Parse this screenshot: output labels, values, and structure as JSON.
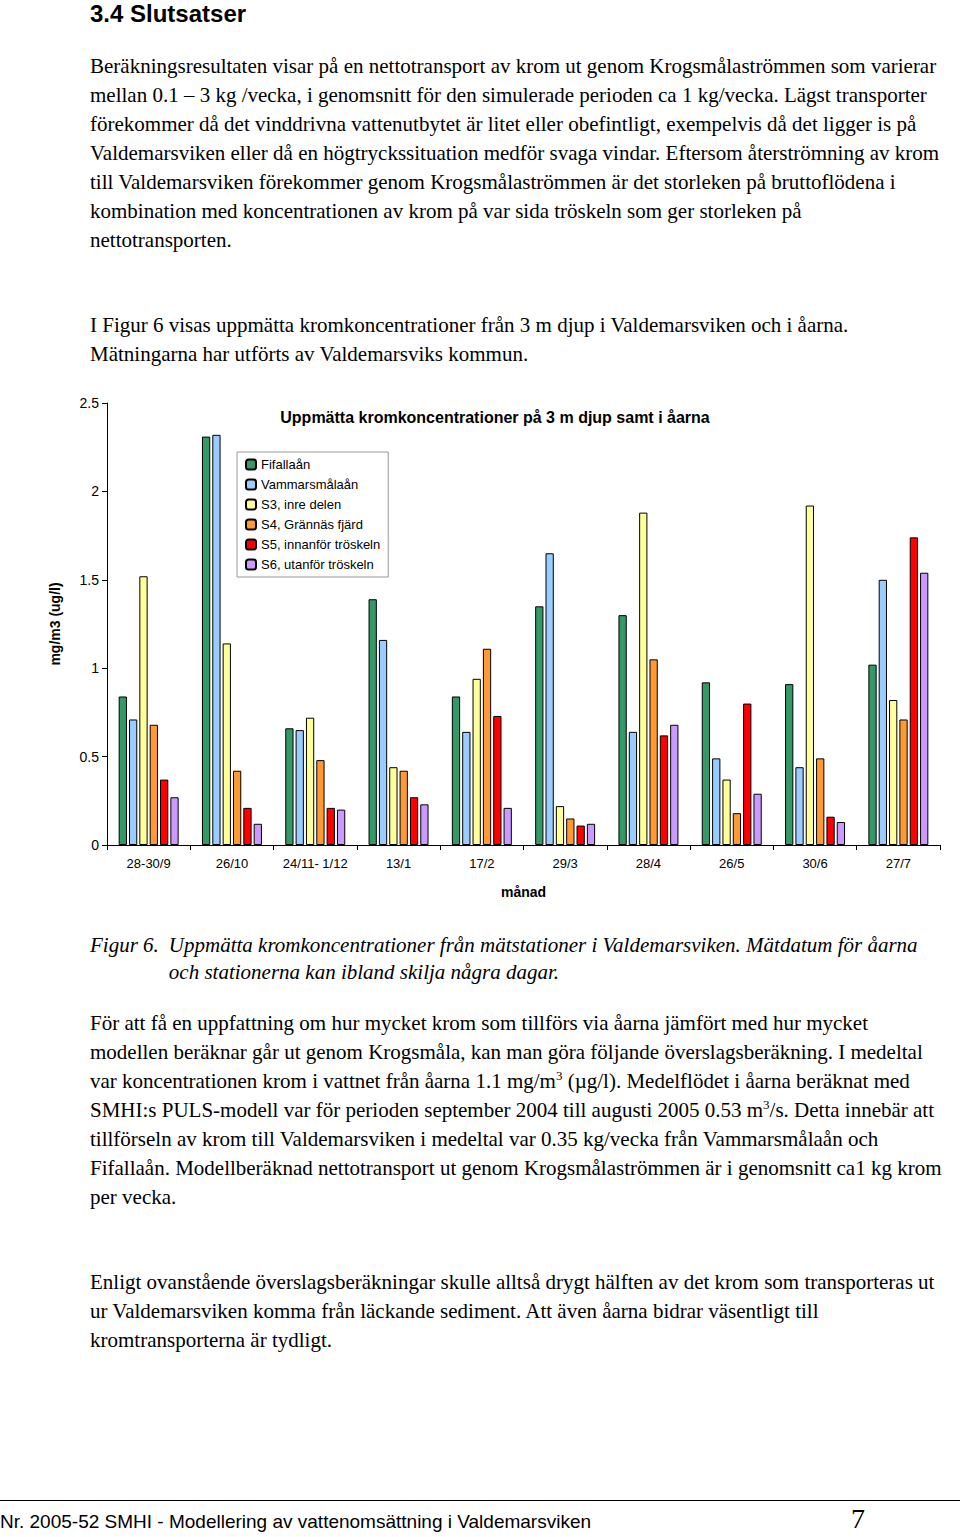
{
  "heading": "3.4 Slutsatser",
  "paragraphs_before": [
    [
      "Beräkningsresultaten visar på en nettotransport av krom ut genom Krogsmålaströmmen som varierar mellan 0.1 – 3 kg /vecka, i genomsnitt för den simulerade perioden ca 1 kg/vecka. Lägst transporter förekommer då det vinddrivna vattenutbytet är litet eller obefintligt, exempelvis då det ligger is på Valdemarsviken eller då en högtryckssituation medför svaga vindar. Eftersom återströmning av krom till Valdemarsviken förekommer genom Krogsmålaströmmen är det storleken på bruttoflödena i kombination med koncentrationen av krom på var sida tröskeln som ger storleken på nettotransporten."
    ],
    [
      "I Figur 6 visas uppmätta kromkoncentrationer från 3 m djup i Valdemarsviken och i åarna. Mätningarna har utförts av Valdemarsviks kommun."
    ]
  ],
  "chart_data": {
    "type": "bar",
    "title": "Uppmätta kromkoncentrationer på 3 m djup samt i åarna",
    "x_label": "månad",
    "y_label": "mg/m3 (ug/l)",
    "categories": [
      "28-30/9",
      "26/10",
      "24/11- 1/12",
      "13/1",
      "17/2",
      "29/3",
      "28/4",
      "26/5",
      "30/6",
      "27/7"
    ],
    "series": [
      {
        "name": "Fifallaån",
        "color": "#339966",
        "values": [
          0.84,
          2.31,
          0.66,
          1.39,
          0.84,
          1.35,
          1.3,
          0.92,
          0.91,
          1.02
        ]
      },
      {
        "name": "Vammarsmålaån",
        "color": "#99ccff",
        "values": [
          0.71,
          2.32,
          0.65,
          1.16,
          0.64,
          1.65,
          0.64,
          0.49,
          0.44,
          1.5
        ]
      },
      {
        "name": "S3, inre delen",
        "color": "#ffff99",
        "values": [
          1.52,
          1.14,
          0.72,
          0.44,
          0.94,
          0.22,
          1.88,
          0.37,
          1.92,
          0.82
        ]
      },
      {
        "name": "S4, Grännäs fjärd",
        "color": "#ff9933",
        "values": [
          0.68,
          0.42,
          0.48,
          0.42,
          1.11,
          0.15,
          1.05,
          0.18,
          0.49,
          0.71
        ]
      },
      {
        "name": "S5, innanför tröskeln",
        "color": "#ff0000",
        "values": [
          0.37,
          0.21,
          0.21,
          0.27,
          0.73,
          0.11,
          0.62,
          0.8,
          0.16,
          1.74
        ]
      },
      {
        "name": "S6, utanför tröskeln",
        "color": "#cc99ff",
        "values": [
          0.27,
          0.12,
          0.2,
          0.23,
          0.21,
          0.12,
          0.68,
          0.29,
          0.13,
          1.54
        ]
      }
    ],
    "ylim": [
      0,
      2.5
    ],
    "yticks": [
      0,
      0.5,
      1,
      1.5,
      2,
      2.5
    ],
    "grid": false,
    "legend": "top-left"
  },
  "caption": {
    "label": "Figur 6.",
    "text": "Uppmätta kromkoncentrationer från mätstationer i Valdemarsviken. Mätdatum för åarna och stationerna kan ibland skilja några dagar."
  },
  "paragraphs_after": [
    [
      "För att få en uppfattning om hur mycket krom som tillförs via åarna jämfört med hur mycket modellen beräknar går ut genom Krogsmåla, kan man göra följande överslagsberäkning. I medeltal var koncentrationen krom i vattnet från åarna 1.1 mg/m",
      {
        "sup": "3"
      },
      " (µg/l). Medelflödet i åarna beräknat med SMHI:s PULS-modell var för perioden september 2004 till augusti 2005 0.53 m",
      {
        "sup": "3"
      },
      "/s. Detta innebär att tillförseln av krom till Valdemarsviken i medeltal var 0.35 kg/vecka från Vammarsmålaån och Fifallaån. Modellberäknad nettotransport ut genom Krogsmålaströmmen är i genomsnitt ca1 kg krom per vecka."
    ],
    [
      "Enligt ovanstående överslagsberäkningar skulle alltså drygt hälften av det krom som transporteras ut ur Valdemarsviken komma från läckande sediment. Att även åarna bidrar väsentligt till kromtransporterna är tydligt."
    ]
  ],
  "footer": {
    "left": "Nr. 2005-52 SMHI - Modellering av vattenomsättning i Valdemarsviken",
    "page": "7"
  }
}
